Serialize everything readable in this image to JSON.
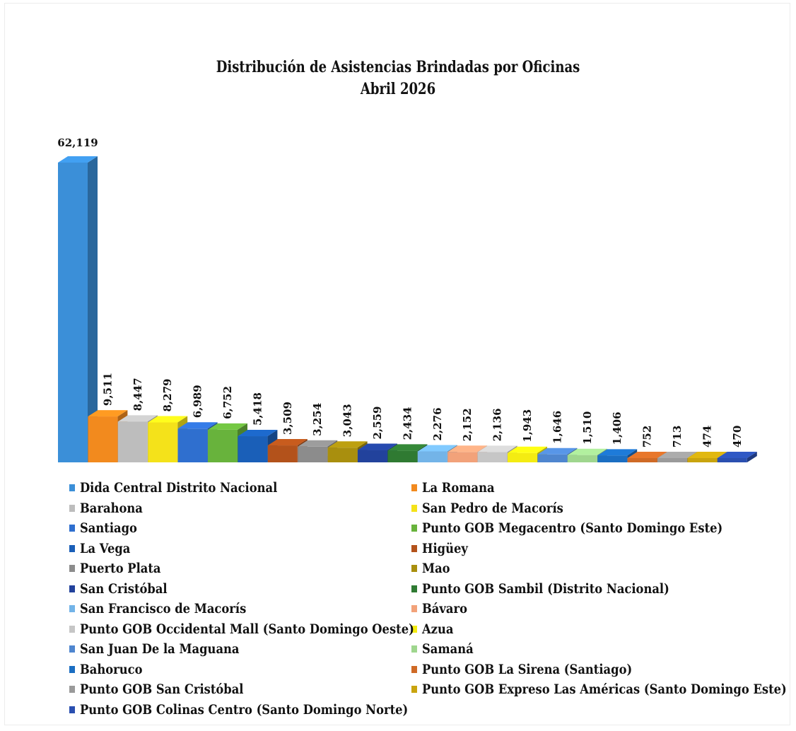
{
  "chart_data": {
    "type": "bar",
    "title": [
      "Distribución de Asistencias Brindadas por Oficinas",
      "Abril 2026"
    ],
    "xlabel": "",
    "ylabel": "",
    "ylim": [
      0,
      62119
    ],
    "grid": false,
    "legend_position": "bottom",
    "categories": [
      "Dida Central  Distrito Nacional",
      "La Romana",
      "Barahona",
      "San Pedro de Macorís",
      "Santiago",
      "Punto GOB Megacentro (Santo Domingo Este)",
      "La Vega",
      "Higüey",
      "Puerto Plata",
      "Mao",
      "San Cristóbal",
      "Punto GOB Sambil (Distrito Nacional)",
      "San Francisco de Macorís",
      "Bávaro",
      "Punto GOB Occidental  Mall (Santo Domingo Oeste)",
      "Azua",
      "San Juan De la Maguana",
      "Samaná",
      "Bahoruco",
      "Punto GOB La Sirena (Santiago)",
      "Punto GOB San Cristóbal",
      "Punto GOB Expreso Las Américas (Santo Domingo Este)",
      "Punto GOB Colinas Centro (Santo Domingo Norte)"
    ],
    "values": [
      62119,
      9511,
      8447,
      8279,
      6989,
      6752,
      5418,
      3509,
      3254,
      3043,
      2559,
      2434,
      2276,
      2152,
      2136,
      1943,
      1646,
      1510,
      1406,
      752,
      713,
      474,
      470
    ],
    "value_labels": [
      "62,119",
      "9,511",
      "8,447",
      "8,279",
      "6,989",
      "6,752",
      "5,418",
      "3,509",
      "3,254",
      "3,043",
      "2,559",
      "2,434",
      "2,276",
      "2,152",
      "2,136",
      "1,943",
      "1,646",
      "1,510",
      "1,406",
      "752",
      "713",
      "474",
      "470"
    ],
    "colors": [
      "#3b8fd8",
      "#f28a1e",
      "#bdbdbd",
      "#f4e21a",
      "#2f6fcf",
      "#68b33c",
      "#1a5fb8",
      "#b3521b",
      "#8c8c8c",
      "#a98f0e",
      "#22429c",
      "#2f7a32",
      "#73b4e8",
      "#f2a27a",
      "#c6c6c6",
      "#f4ec12",
      "#4f86cf",
      "#9fd68e",
      "#1b6ec2",
      "#cf6a26",
      "#9a9a9a",
      "#c9a40e",
      "#2a4fb0"
    ]
  }
}
